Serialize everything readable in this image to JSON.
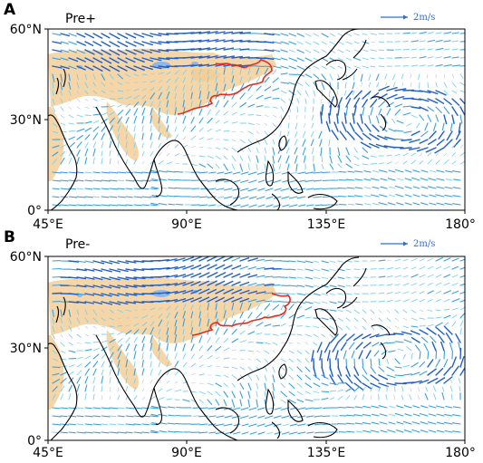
{
  "panels": [
    {
      "letter": "A",
      "title": "Pre+",
      "reference": {
        "label": "2m/s"
      },
      "pattern": "anticyclone-east"
    },
    {
      "letter": "B",
      "title": "Pre-",
      "reference": {
        "label": "2m/s"
      },
      "pattern": "cyclone-east"
    }
  ],
  "axes": {
    "x_ticks": [
      "45°E",
      "90°E",
      "135°E",
      "180°"
    ],
    "y_ticks": [
      "0°",
      "30°N",
      "60°N"
    ]
  },
  "colors": {
    "arrow_strong": "#1f5fc8",
    "arrow_mid": "#3aa0dc",
    "arrow_weak": "#7fd0e8",
    "arrow_faint": "#b9c3cf",
    "plateau": "#f5d6a8",
    "lake": "#8fb8e8",
    "boundary_line": "#e8291c",
    "coast": "#000000",
    "ref_arrow": "#2a6fd6"
  }
}
